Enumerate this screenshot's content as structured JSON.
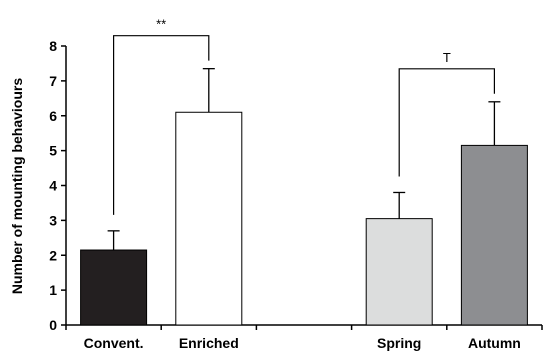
{
  "chart_data": {
    "type": "bar",
    "categories": [
      "Convent.",
      "Enriched",
      "",
      "Spring",
      "Autumn"
    ],
    "values": [
      2.15,
      6.1,
      null,
      3.05,
      5.15
    ],
    "error_upper": [
      2.7,
      7.35,
      null,
      3.8,
      6.4
    ],
    "bar_colors": [
      "#231f20",
      "#ffffff",
      null,
      "#dcdddd",
      "#8d8e91"
    ],
    "ylabel": "Number of mounting behaviours",
    "xlabel": "",
    "ylim": [
      0,
      8
    ],
    "yticks": [
      0,
      1,
      2,
      3,
      4,
      5,
      6,
      7,
      8
    ],
    "grid": false,
    "significance": [
      {
        "between": [
          0,
          1
        ],
        "label": "**"
      },
      {
        "between": [
          3,
          4
        ],
        "label": "T"
      }
    ]
  }
}
